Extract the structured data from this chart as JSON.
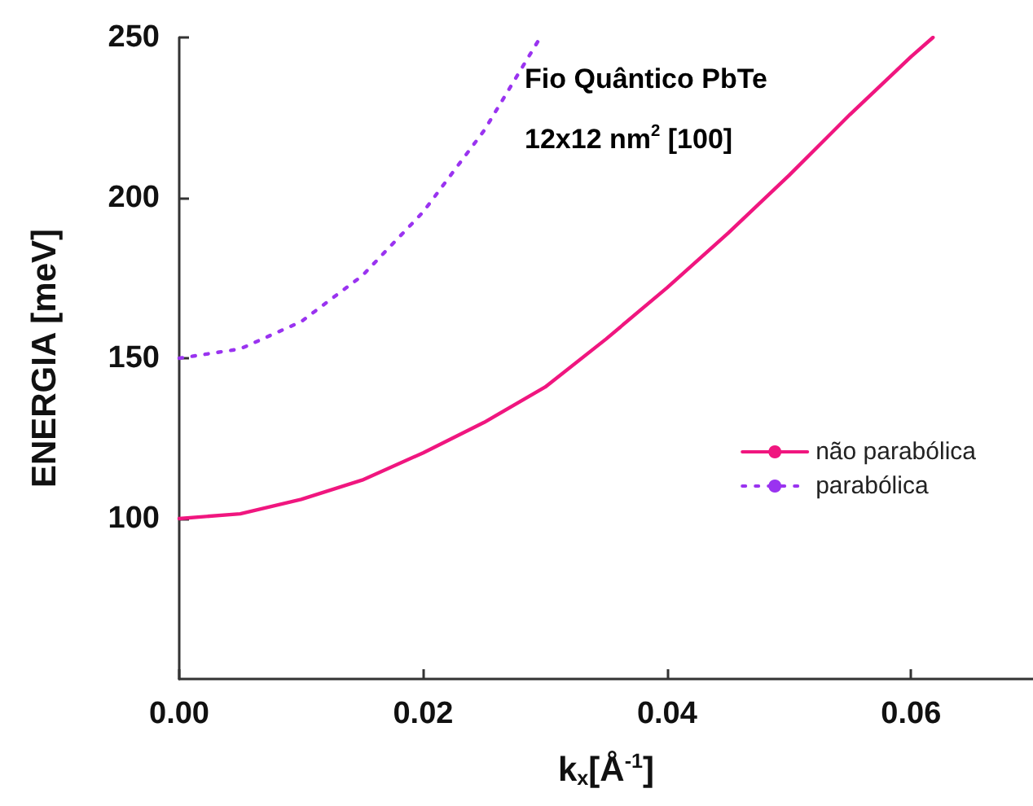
{
  "chart_data": {
    "type": "line",
    "xlabel": "k$_{x}$[Å$^{-1}$]",
    "ylabel": "ENERGIA [meV]",
    "annotations": [
      "Fio Quântico PbTe",
      "12x12 nm$^{2}$ [100]"
    ],
    "xlim": [
      0,
      0.07
    ],
    "ylim": [
      50,
      250
    ],
    "xticks": [
      {
        "value": 0,
        "label": "0.00"
      },
      {
        "value": 0.02,
        "label": "0.02"
      },
      {
        "value": 0.04,
        "label": "0.04"
      },
      {
        "value": 0.06,
        "label": "0.06"
      }
    ],
    "yticks": [
      100,
      150,
      200,
      250
    ],
    "grid": false,
    "legend": "right",
    "marker": "none",
    "series": [
      {
        "name": "não parabólica",
        "color": "#f0167f",
        "line_style": "solid",
        "x": [
          0,
          0.005,
          0.01,
          0.015,
          0.02,
          0.025,
          0.03,
          0.035,
          0.04,
          0.045,
          0.05,
          0.055,
          0.06,
          0.0618
        ],
        "values": [
          100,
          101.5,
          106,
          112,
          120.5,
          130,
          141,
          156,
          172,
          189,
          207,
          226,
          244,
          250
        ]
      },
      {
        "name": "parabólica",
        "color": "#9a33f0",
        "line_style": "dotted",
        "x": [
          0,
          0.005,
          0.01,
          0.015,
          0.02,
          0.025,
          0.0296
        ],
        "values": [
          150,
          152.9,
          161.4,
          175.7,
          195.6,
          221,
          250
        ]
      }
    ]
  }
}
